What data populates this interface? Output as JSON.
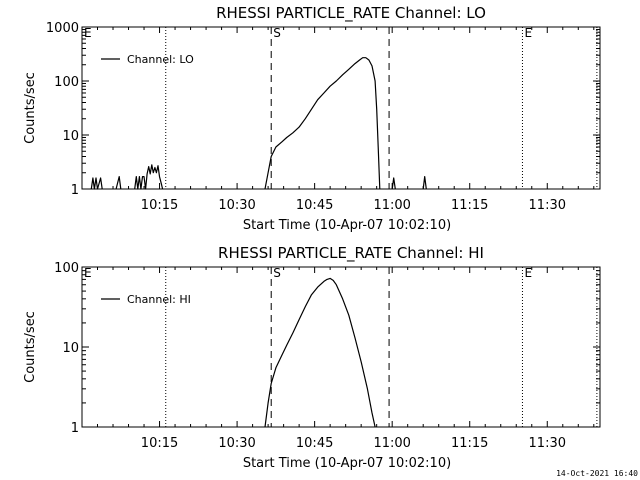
{
  "chart_data": [
    {
      "type": "line",
      "title": "RHESSI PARTICLE_RATE Channel: LO",
      "xlabel": "Start Time (10-Apr-07 10:02:10)",
      "ylabel": "Counts/sec",
      "yscale": "log",
      "ylim": [
        1,
        1000
      ],
      "y_tick_labels": [
        "1",
        "10",
        "100",
        "1000"
      ],
      "xlim_minutes": [
        10.0,
        11.67
      ],
      "x_ticks": [
        {
          "label": "10:15",
          "t": 10.25
        },
        {
          "label": "10:30",
          "t": 10.5
        },
        {
          "label": "10:45",
          "t": 10.75
        },
        {
          "label": "11:00",
          "t": 11.0
        },
        {
          "label": "11:15",
          "t": 11.25
        },
        {
          "label": "11:30",
          "t": 11.5
        }
      ],
      "legend": "Channel: LO",
      "markers": [
        {
          "label": "E",
          "t": 10.0,
          "style": "dotted"
        },
        {
          "label": "S",
          "t": 10.61,
          "style": "dashed"
        },
        {
          "label": "E",
          "t": 11.42,
          "style": "dotted"
        }
      ],
      "dotted_lines_t": [
        10.0,
        10.27,
        11.42,
        11.66
      ],
      "dashed_lines_t": [
        10.61,
        10.99
      ],
      "series": [
        {
          "name": "Channel: LO",
          "segments": [
            [
              [
                10.03,
                1
              ],
              [
                10.035,
                1.6
              ],
              [
                10.04,
                1
              ],
              [
                10.045,
                1.6
              ],
              [
                10.05,
                1
              ],
              [
                10.06,
                1.6
              ],
              [
                10.065,
                1
              ]
            ],
            [
              [
                10.11,
                1
              ],
              [
                10.12,
                1.7
              ],
              [
                10.125,
                1
              ]
            ],
            [
              [
                10.17,
                1
              ],
              [
                10.175,
                1.7
              ],
              [
                10.18,
                1
              ],
              [
                10.185,
                1.7
              ],
              [
                10.19,
                1
              ],
              [
                10.195,
                1.7
              ],
              [
                10.2,
                1.7
              ],
              [
                10.205,
                1
              ],
              [
                10.21,
                1.9
              ],
              [
                10.215,
                2.6
              ],
              [
                10.22,
                1.9
              ],
              [
                10.225,
                2.8
              ],
              [
                10.23,
                2
              ],
              [
                10.235,
                2.5
              ],
              [
                10.24,
                2
              ],
              [
                10.245,
                2.7
              ],
              [
                10.25,
                1.7
              ],
              [
                10.255,
                1.3
              ],
              [
                10.26,
                1
              ]
            ],
            [
              [
                10.59,
                1
              ],
              [
                10.6,
                2
              ],
              [
                10.61,
                4
              ],
              [
                10.625,
                6
              ],
              [
                10.645,
                7.5
              ],
              [
                10.66,
                9
              ],
              [
                10.68,
                11
              ],
              [
                10.7,
                14
              ],
              [
                10.72,
                20
              ],
              [
                10.74,
                30
              ],
              [
                10.76,
                45
              ],
              [
                10.78,
                60
              ],
              [
                10.8,
                80
              ],
              [
                10.82,
                100
              ],
              [
                10.84,
                130
              ],
              [
                10.86,
                165
              ],
              [
                10.88,
                210
              ],
              [
                10.895,
                245
              ],
              [
                10.905,
                270
              ],
              [
                10.915,
                270
              ],
              [
                10.925,
                245
              ],
              [
                10.935,
                190
              ],
              [
                10.945,
                100
              ],
              [
                10.95,
                30
              ],
              [
                10.955,
                6
              ],
              [
                10.96,
                1
              ]
            ],
            [
              [
                11.0,
                1
              ],
              [
                11.005,
                1.6
              ],
              [
                11.01,
                1
              ]
            ],
            [
              [
                11.1,
                1
              ],
              [
                11.105,
                1.7
              ],
              [
                11.11,
                1
              ]
            ]
          ]
        }
      ]
    },
    {
      "type": "line",
      "title": "RHESSI PARTICLE_RATE Channel: HI",
      "xlabel": "Start Time (10-Apr-07 10:02:10)",
      "ylabel": "Counts/sec",
      "yscale": "log",
      "ylim": [
        1,
        100
      ],
      "y_tick_labels": [
        "1",
        "10",
        "100"
      ],
      "xlim_minutes": [
        10.0,
        11.67
      ],
      "x_ticks": [
        {
          "label": "10:15",
          "t": 10.25
        },
        {
          "label": "10:30",
          "t": 10.5
        },
        {
          "label": "10:45",
          "t": 10.75
        },
        {
          "label": "11:00",
          "t": 11.0
        },
        {
          "label": "11:15",
          "t": 11.25
        },
        {
          "label": "11:30",
          "t": 11.5
        }
      ],
      "legend": "Channel: HI",
      "markers": [
        {
          "label": "E",
          "t": 10.0,
          "style": "dotted"
        },
        {
          "label": "S",
          "t": 10.61,
          "style": "dashed"
        },
        {
          "label": "E",
          "t": 11.42,
          "style": "dotted"
        }
      ],
      "dotted_lines_t": [
        10.0,
        10.27,
        11.42,
        11.66
      ],
      "dashed_lines_t": [
        10.61,
        10.99
      ],
      "series": [
        {
          "name": "Channel: HI",
          "segments": [
            [
              [
                10.59,
                1
              ],
              [
                10.6,
                2
              ],
              [
                10.61,
                3.5
              ],
              [
                10.625,
                5.5
              ],
              [
                10.645,
                8
              ],
              [
                10.66,
                10.5
              ],
              [
                10.68,
                15
              ],
              [
                10.7,
                22
              ],
              [
                10.72,
                32
              ],
              [
                10.74,
                45
              ],
              [
                10.76,
                56
              ],
              [
                10.78,
                66
              ],
              [
                10.79,
                70
              ],
              [
                10.8,
                72
              ],
              [
                10.81,
                68
              ],
              [
                10.82,
                60
              ],
              [
                10.84,
                40
              ],
              [
                10.86,
                25
              ],
              [
                10.88,
                13
              ],
              [
                10.9,
                6.5
              ],
              [
                10.92,
                3
              ],
              [
                10.935,
                1.5
              ],
              [
                10.945,
                1
              ]
            ]
          ]
        }
      ]
    }
  ],
  "footer": {
    "timestamp": "14-Oct-2021 16:40"
  }
}
